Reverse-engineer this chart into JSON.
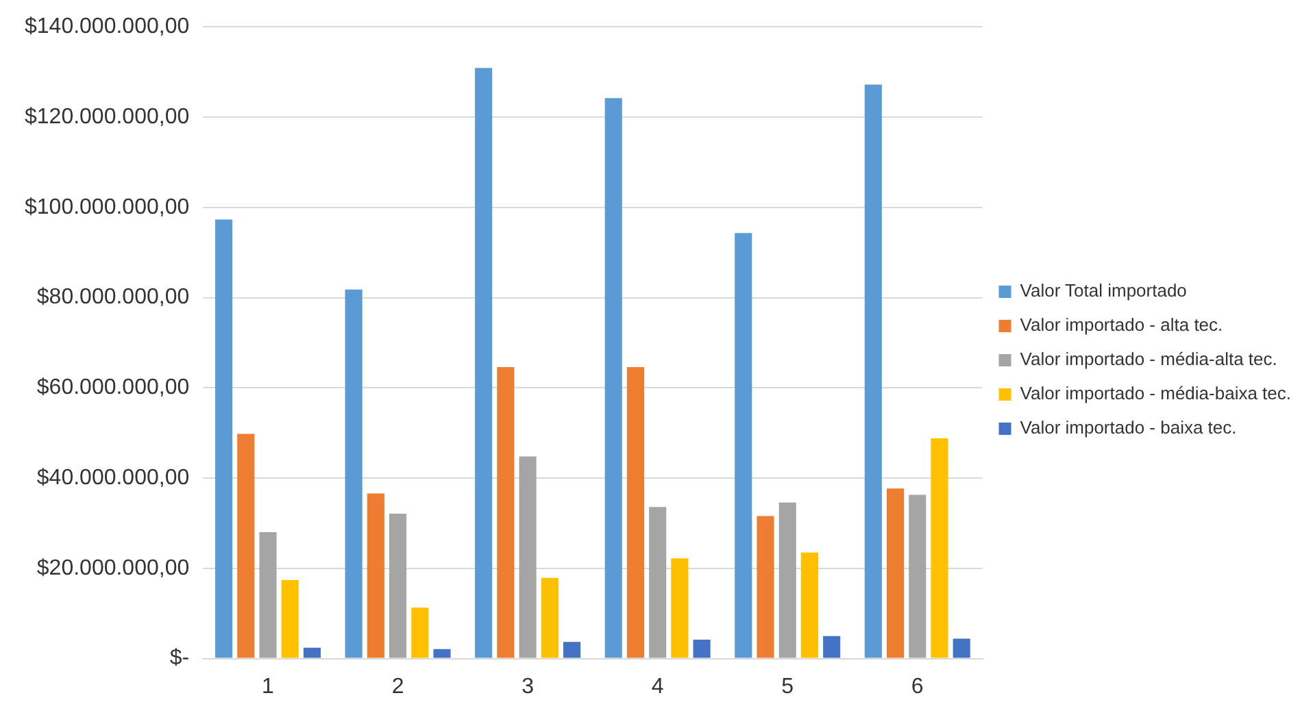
{
  "chart_data": {
    "type": "bar",
    "categories": [
      "1",
      "2",
      "3",
      "4",
      "5",
      "6"
    ],
    "series": [
      {
        "name": "Valor Total importado",
        "color": "#5b9bd5",
        "values": [
          97300000,
          81800000,
          130900000,
          124200000,
          94300000,
          127200000
        ]
      },
      {
        "name": "Valor importado - alta tec.",
        "color": "#ed7d31",
        "values": [
          49800000,
          36600000,
          64600000,
          64600000,
          31600000,
          37700000
        ]
      },
      {
        "name": "Valor importado - média-alta tec.",
        "color": "#a5a5a5",
        "values": [
          28000000,
          32100000,
          44800000,
          33600000,
          34600000,
          36300000
        ]
      },
      {
        "name": "Valor importado - média-baixa tec.",
        "color": "#ffc000",
        "values": [
          17400000,
          11300000,
          17900000,
          22200000,
          23500000,
          48800000
        ]
      },
      {
        "name": "Valor importado - baixa tec.",
        "color": "#4472c4",
        "values": [
          2400000,
          2100000,
          3700000,
          4200000,
          5000000,
          4400000
        ]
      }
    ],
    "ylim": [
      0,
      140000000
    ],
    "yticks": [
      {
        "value": 0,
        "label": "$-"
      },
      {
        "value": 20000000,
        "label": "$20.000.000,00"
      },
      {
        "value": 40000000,
        "label": "$40.000.000,00"
      },
      {
        "value": 60000000,
        "label": "$60.000.000,00"
      },
      {
        "value": 80000000,
        "label": "$80.000.000,00"
      },
      {
        "value": 100000000,
        "label": "$100.000.000,00"
      },
      {
        "value": 120000000,
        "label": "$120.000.000,00"
      },
      {
        "value": 140000000,
        "label": "$140.000.000,00"
      }
    ],
    "grid": "y",
    "legend": "right"
  }
}
